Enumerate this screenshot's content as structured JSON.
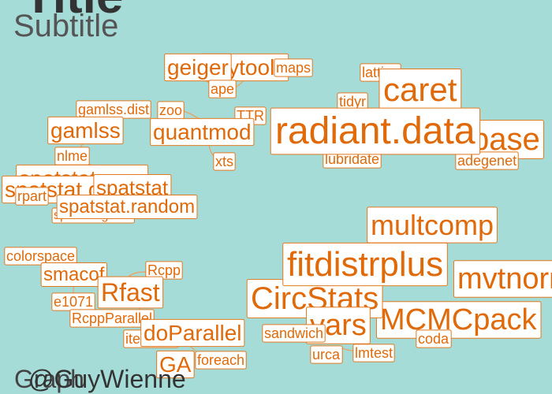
{
  "header": {
    "title": "Title",
    "subtitle": "Subtitle"
  },
  "nodes": [
    {
      "label": "phytools"
    },
    {
      "label": "geiger"
    },
    {
      "label": "maps"
    },
    {
      "label": "ape"
    },
    {
      "label": "lattice"
    },
    {
      "label": "caret"
    },
    {
      "label": "tidyr"
    },
    {
      "label": "gamlss.dist"
    },
    {
      "label": "zoo"
    },
    {
      "label": "gamlss"
    },
    {
      "label": "TTR"
    },
    {
      "label": "quantmod"
    },
    {
      "label": "base"
    },
    {
      "label": "lubridate"
    },
    {
      "label": "adegenet"
    },
    {
      "label": "radiant.data"
    },
    {
      "label": "xts"
    },
    {
      "label": "nlme"
    },
    {
      "label": "spatstat.core"
    },
    {
      "label": "spatstat.data"
    },
    {
      "label": "rpart"
    },
    {
      "label": "spatstat.geom"
    },
    {
      "label": "spatstat"
    },
    {
      "label": "spatstat.random"
    },
    {
      "label": "multcomp"
    },
    {
      "label": "colorspace"
    },
    {
      "label": "smacof"
    },
    {
      "label": "Rcpp"
    },
    {
      "label": "mvtnorm"
    },
    {
      "label": "MCMCpack"
    },
    {
      "label": "CircStats"
    },
    {
      "label": "fitdistrplus"
    },
    {
      "label": "Rfast"
    },
    {
      "label": "e1071"
    },
    {
      "label": "RcppParallel"
    },
    {
      "label": "vars"
    },
    {
      "label": "sandwich"
    },
    {
      "label": "coda"
    },
    {
      "label": "iterators"
    },
    {
      "label": "doParallel"
    },
    {
      "label": "urca"
    },
    {
      "label": "lmtest"
    },
    {
      "label": "GA"
    },
    {
      "label": "foreach"
    }
  ],
  "caption": [
    "Graph",
    "@GuyWienne"
  ]
}
